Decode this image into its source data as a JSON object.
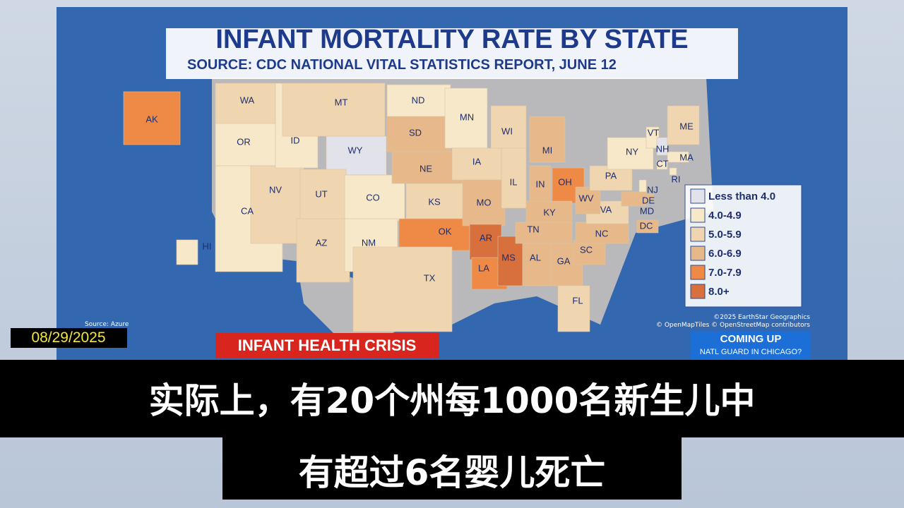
{
  "header": {
    "title": "INFANT MORTALITY RATE BY STATE",
    "source": "SOURCE: CDC NATIONAL VITAL STATISTICS REPORT, JUNE 12"
  },
  "map": {
    "states": [
      {
        "label": "WA",
        "color": "#f0d6b0"
      },
      {
        "label": "AK",
        "color": "#ee8a45"
      },
      {
        "label": "OR",
        "color": "#f6e8c8"
      },
      {
        "label": "CA",
        "color": "#f6e8c8"
      },
      {
        "label": "NV",
        "color": "#f0d6b0"
      },
      {
        "label": "ID",
        "color": "#f6e8c8"
      },
      {
        "label": "MT",
        "color": "#f0d6b0"
      },
      {
        "label": "WY",
        "color": "#e2e2ea"
      },
      {
        "label": "UT",
        "color": "#f0d6b0"
      },
      {
        "label": "CO",
        "color": "#f6e8c8"
      },
      {
        "label": "AZ",
        "color": "#f0d6b0"
      },
      {
        "label": "NM",
        "color": "#f6e8c8"
      },
      {
        "label": "ND",
        "color": "#f6e8c8"
      },
      {
        "label": "SD",
        "color": "#e6b88a"
      },
      {
        "label": "NE",
        "color": "#e6b88a"
      },
      {
        "label": "KS",
        "color": "#f0d6b0"
      },
      {
        "label": "OK",
        "color": "#ee8a45"
      },
      {
        "label": "TX",
        "color": "#f0d6b0"
      },
      {
        "label": "MN",
        "color": "#f6e8c8"
      },
      {
        "label": "IA",
        "color": "#f0d6b0"
      },
      {
        "label": "MO",
        "color": "#e6b88a"
      },
      {
        "label": "AR",
        "color": "#d8703e"
      },
      {
        "label": "LA",
        "color": "#ee8a45"
      },
      {
        "label": "MS",
        "color": "#d8703e"
      },
      {
        "label": "WI",
        "color": "#f0d6b0"
      },
      {
        "label": "IL",
        "color": "#f0d6b0"
      },
      {
        "label": "MI",
        "color": "#e6b88a"
      },
      {
        "label": "IN",
        "color": "#e6b88a"
      },
      {
        "label": "OH",
        "color": "#ee8a45"
      },
      {
        "label": "KY",
        "color": "#e6b88a"
      },
      {
        "label": "TN",
        "color": "#e6b88a"
      },
      {
        "label": "AL",
        "color": "#e6b88a"
      },
      {
        "label": "GA",
        "color": "#e6b88a"
      },
      {
        "label": "FL",
        "color": "#f0d6b0"
      },
      {
        "label": "SC",
        "color": "#e6b88a"
      },
      {
        "label": "NC",
        "color": "#e6b88a"
      },
      {
        "label": "VA",
        "color": "#f0d6b0"
      },
      {
        "label": "WV",
        "color": "#e6b88a"
      },
      {
        "label": "PA",
        "color": "#f0d6b0"
      },
      {
        "label": "NY",
        "color": "#f6e8c8"
      },
      {
        "label": "VT",
        "color": "#f6e8c8"
      },
      {
        "label": "NH",
        "color": "#e2e2ea"
      },
      {
        "label": "ME",
        "color": "#f0d6b0"
      },
      {
        "label": "MA",
        "color": "#f6e8c8"
      },
      {
        "label": "CT",
        "color": "#f6e8c8"
      },
      {
        "label": "RI",
        "color": "#f6e8c8"
      },
      {
        "label": "NJ",
        "color": "#f6e8c8"
      },
      {
        "label": "DE",
        "color": "#e6b88a"
      },
      {
        "label": "MD",
        "color": "#e6b88a"
      },
      {
        "label": "DC",
        "color": "#e6b88a"
      },
      {
        "label": "HI",
        "color": "#f6e8c8"
      }
    ],
    "legend": [
      {
        "label": "Less than 4.0",
        "color": "#e2e2ea"
      },
      {
        "label": "4.0-4.9",
        "color": "#f6e8c8"
      },
      {
        "label": "5.0-5.9",
        "color": "#f0d6b0"
      },
      {
        "label": "6.0-6.9",
        "color": "#e6b88a"
      },
      {
        "label": "7.0-7.9",
        "color": "#ee8a45"
      },
      {
        "label": "8.0+",
        "color": "#d8703e"
      }
    ],
    "attribution": [
      "©2025 EarthStar Geographics",
      "© OpenMapTiles © OpenStreetMap contributors"
    ],
    "source_note": "Source: Azure"
  },
  "overlay": {
    "date": "08/29/2025",
    "banner": "INFANT HEALTH CRISIS",
    "coming_up": {
      "title": "COMING UP",
      "subtitle": "NATL GUARD IN CHICAGO?"
    }
  },
  "subtitles": [
    "实际上，有20个州每1000名新生儿中",
    "有超过6名婴儿死亡"
  ]
}
